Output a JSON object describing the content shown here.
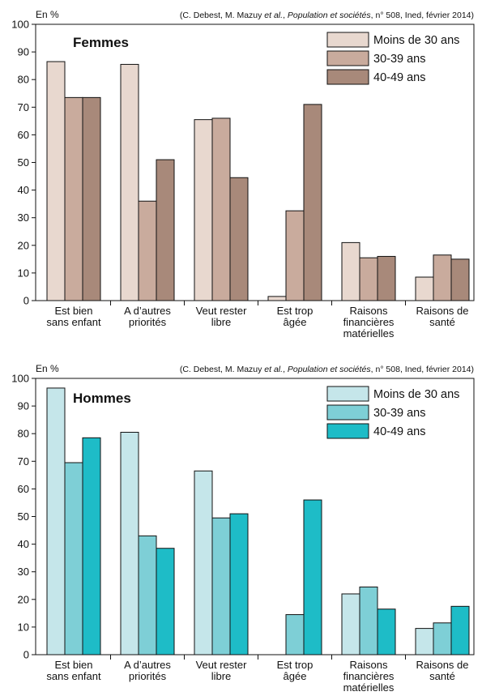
{
  "chart_data": [
    {
      "type": "bar",
      "unit_label": "En %",
      "source": {
        "before": "(C. Debest, M. Mazuy ",
        "italic1": "et al.",
        "mid": ", ",
        "italic2": "Population et sociétés",
        "after": ", n° 508, Ined, février 2014)"
      },
      "title": "Femmes",
      "categories": [
        [
          "Est bien",
          "sans enfant"
        ],
        [
          "A d’autres",
          "priorités"
        ],
        [
          "Veut rester",
          "libre"
        ],
        [
          "Est trop",
          "âgée"
        ],
        [
          "Raisons",
          "financières",
          "matérielles"
        ],
        [
          "Raisons de",
          "santé"
        ]
      ],
      "series": [
        {
          "name": "Moins de 30 ans",
          "color": "#e8d8cf",
          "values": [
            86.5,
            85.5,
            65.5,
            1.5,
            21,
            8.5
          ]
        },
        {
          "name": "30-39 ans",
          "color": "#c9ab9d",
          "values": [
            73.5,
            36,
            66,
            32.5,
            15.5,
            16.5
          ]
        },
        {
          "name": "40-49 ans",
          "color": "#a8897a",
          "values": [
            73.5,
            51,
            44.5,
            71,
            16,
            15
          ]
        }
      ],
      "ylim": [
        0,
        100
      ],
      "yticks": [
        0,
        10,
        20,
        30,
        40,
        50,
        60,
        70,
        80,
        90,
        100
      ],
      "xlabel": "",
      "ylabel": ""
    },
    {
      "type": "bar",
      "unit_label": "En %",
      "source": {
        "before": "(C. Debest, M. Mazuy ",
        "italic1": "et al.",
        "mid": ", ",
        "italic2": "Population et sociétés",
        "after": ", n° 508, Ined, février 2014)"
      },
      "title": "Hommes",
      "categories": [
        [
          "Est bien",
          "sans enfant"
        ],
        [
          "A d’autres",
          "priorités"
        ],
        [
          "Veut rester",
          "libre"
        ],
        [
          "Est trop",
          "âgée"
        ],
        [
          "Raisons",
          "financières",
          "matérielles"
        ],
        [
          "Raisons de",
          "santé"
        ]
      ],
      "series": [
        {
          "name": "Moins de 30 ans",
          "color": "#c5e6ea",
          "values": [
            96.5,
            80.5,
            66.5,
            0,
            22,
            9.5
          ]
        },
        {
          "name": "30-39 ans",
          "color": "#7ecfd6",
          "values": [
            69.5,
            43,
            49.5,
            14.5,
            24.5,
            11.5
          ]
        },
        {
          "name": "40-49 ans",
          "color": "#1ebcc7",
          "values": [
            78.5,
            38.5,
            51,
            56,
            16.5,
            17.5
          ]
        }
      ],
      "ylim": [
        0,
        100
      ],
      "yticks": [
        0,
        10,
        20,
        30,
        40,
        50,
        60,
        70,
        80,
        90,
        100
      ],
      "xlabel": "",
      "ylabel": ""
    }
  ]
}
